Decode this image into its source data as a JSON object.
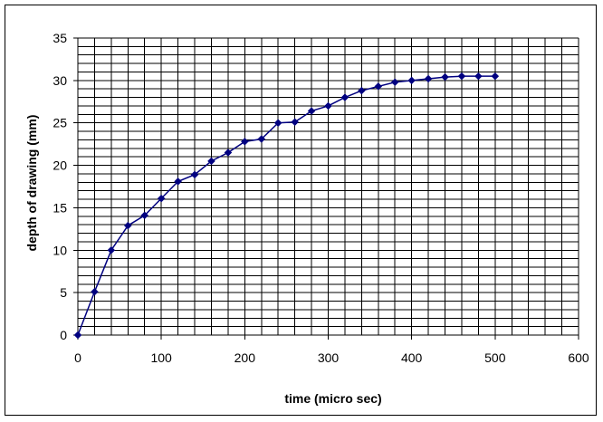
{
  "chart_data": {
    "type": "line",
    "title": "",
    "xlabel": "time (micro sec)",
    "ylabel": "depth of drawing (mm)",
    "xlim": [
      0,
      600
    ],
    "ylim": [
      0,
      35
    ],
    "x_ticks": [
      0,
      100,
      200,
      300,
      400,
      500,
      600
    ],
    "y_ticks": [
      0,
      5,
      10,
      15,
      20,
      25,
      30,
      35
    ],
    "x_minor_step": 20,
    "y_minor_step": 1,
    "grid": true,
    "legend": "none",
    "series": [
      {
        "color": "#000080",
        "marker": "diamond",
        "x": [
          0,
          20,
          40,
          60,
          80,
          100,
          120,
          140,
          160,
          180,
          200,
          220,
          240,
          260,
          280,
          300,
          320,
          340,
          360,
          380,
          400,
          420,
          440,
          460,
          480,
          500
        ],
        "y": [
          0,
          5.1,
          10,
          12.9,
          14.1,
          16.1,
          18.1,
          18.9,
          20.5,
          21.5,
          22.8,
          23.1,
          25,
          25.1,
          26.4,
          27,
          28,
          28.8,
          29.3,
          29.8,
          30,
          30.2,
          30.4,
          30.5,
          30.5,
          30.5
        ]
      }
    ]
  }
}
